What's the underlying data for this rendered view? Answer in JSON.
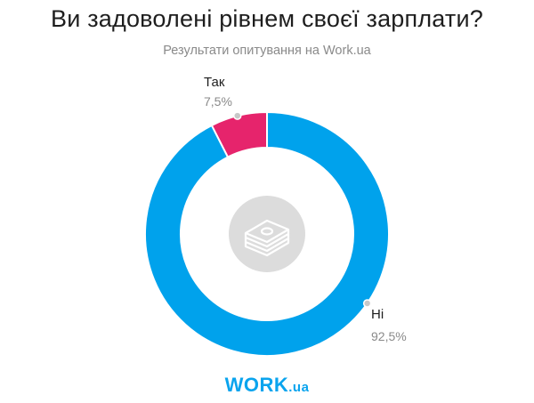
{
  "header": {
    "title": "Ви задоволені рівнем своєї зарплати?",
    "subtitle": "Результати опитування на Work.ua"
  },
  "chart_data": {
    "type": "pie",
    "donut": true,
    "categories": [
      "Так",
      "Ні"
    ],
    "values": [
      7.5,
      92.5
    ],
    "value_labels": [
      "7,5%",
      "92,5%"
    ],
    "colors": [
      "#e6246c",
      "#00a2ec"
    ],
    "center_icon": "money-stack-icon"
  },
  "brand": {
    "name": "WORK",
    "tld": ".ua"
  }
}
